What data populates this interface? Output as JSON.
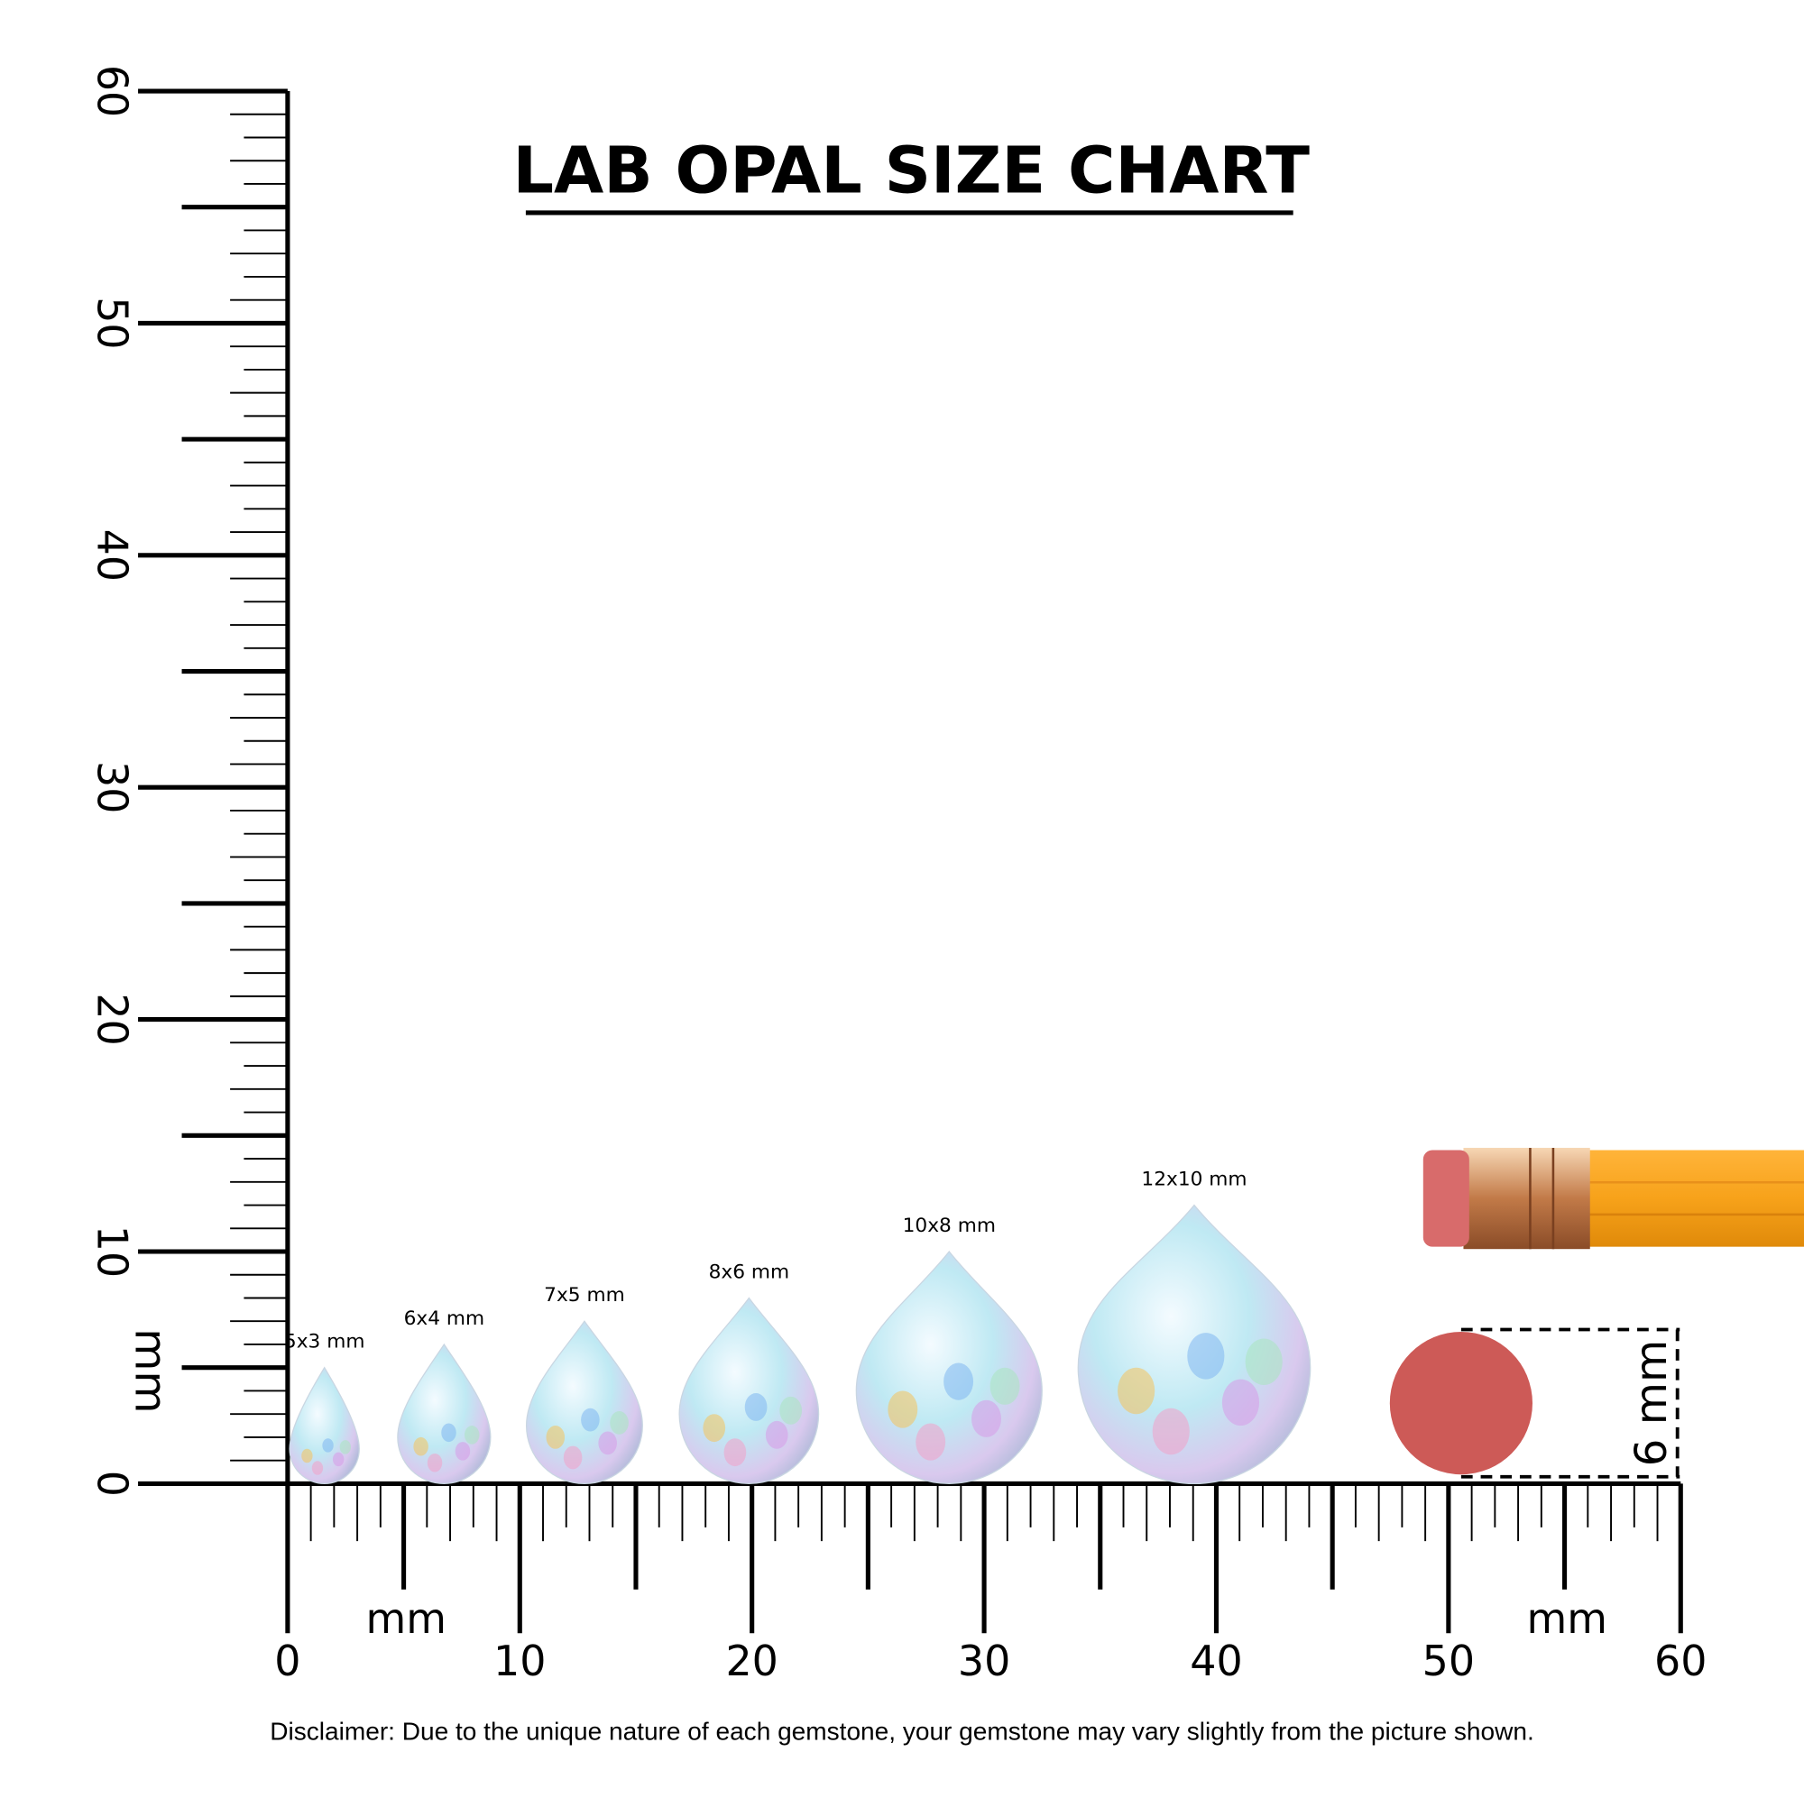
{
  "title": "LAB OPAL SIZE CHART",
  "vertical_ruler": {
    "labels": [
      0,
      10,
      20,
      30,
      40,
      50,
      60
    ],
    "unit": "mm"
  },
  "horizontal_ruler": {
    "labels": [
      0,
      10,
      20,
      30,
      40,
      50,
      60
    ],
    "unit": "mm",
    "unit_right": "mm"
  },
  "stones": [
    {
      "label": "5x3 mm"
    },
    {
      "label": "6x4 mm"
    },
    {
      "label": "7x5 mm"
    },
    {
      "label": "8x6 mm"
    },
    {
      "label": "10x8 mm"
    },
    {
      "label": "12x10 mm"
    }
  ],
  "eraser": {
    "label": "6 mm"
  },
  "disclaimer": "Disclaimer: Due to the unique nature of each gemstone, your gemstone may vary slightly from the picture shown."
}
